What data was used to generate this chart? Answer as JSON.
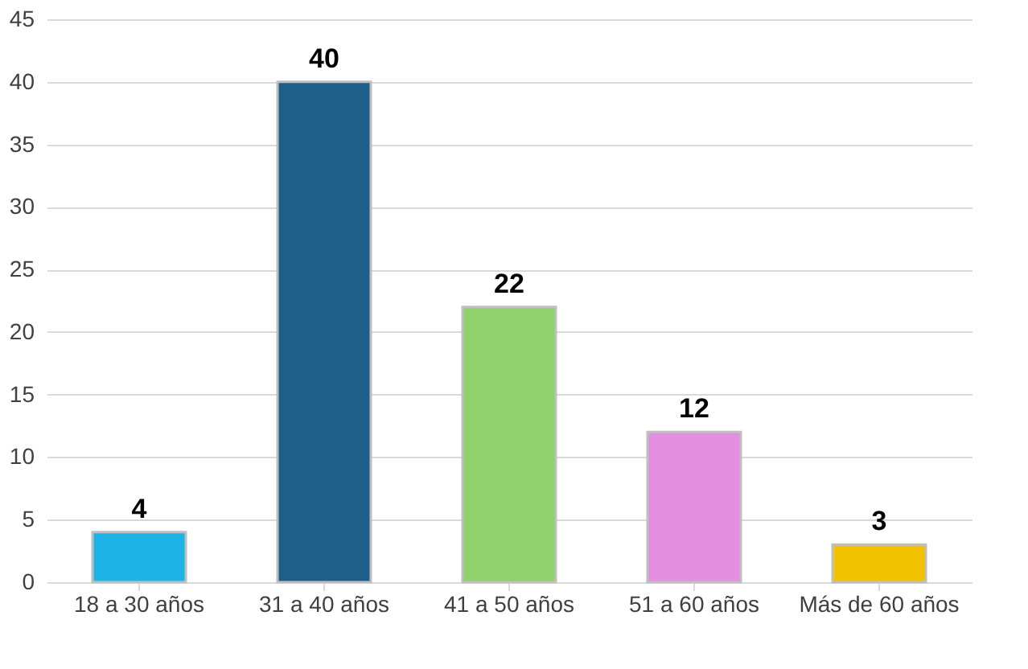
{
  "chart_data": {
    "type": "bar",
    "categories": [
      "18 a 30 años",
      "31 a 40 años",
      "41 a 50 años",
      "51 a 60 años",
      "Más de 60 años"
    ],
    "values": [
      4,
      40,
      22,
      12,
      3
    ],
    "colors": [
      "#1fb4e8",
      "#1e5f8a",
      "#8fd16a",
      "#e38ee0",
      "#f2c200"
    ],
    "ylim": [
      0,
      45
    ],
    "yticks": [
      0,
      5,
      10,
      15,
      20,
      25,
      30,
      35,
      40,
      45
    ],
    "grid": "y",
    "data_labels": true
  }
}
